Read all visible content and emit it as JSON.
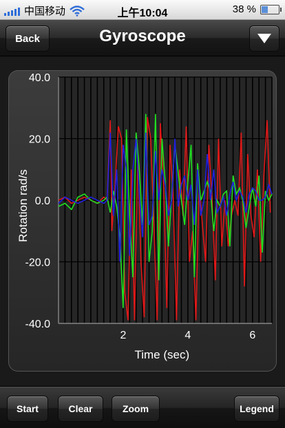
{
  "status_bar": {
    "carrier": "中国移动",
    "time": "上午10:04",
    "battery_text": "38 %",
    "battery_level": 0.38
  },
  "nav": {
    "back_label": "Back",
    "title": "Gyroscope",
    "menu_icon": "triangle-down-icon"
  },
  "toolbar": {
    "start_label": "Start",
    "clear_label": "Clear",
    "zoom_label": "Zoom",
    "legend_label": "Legend"
  },
  "chart_data": {
    "type": "line",
    "xlabel": "Time (sec)",
    "ylabel": "Rotation rad/s",
    "xlim": [
      0,
      6.6
    ],
    "ylim": [
      -40,
      40
    ],
    "xticks": [
      2,
      4,
      6
    ],
    "yticks": [
      -40,
      -20,
      0,
      20,
      40
    ],
    "yticklabels": [
      "-40.0",
      "-20.0",
      "0.0",
      "20.0",
      "40.0"
    ],
    "xticklabels": [
      "2",
      "4",
      "6"
    ],
    "grid": true,
    "series": [
      {
        "color": "#e01818",
        "x": [
          0,
          0.2,
          0.4,
          0.6,
          0.8,
          1.0,
          1.2,
          1.4,
          1.5,
          1.6,
          1.65,
          1.75,
          1.85,
          1.95,
          2.05,
          2.15,
          2.25,
          2.35,
          2.45,
          2.55,
          2.65,
          2.75,
          2.85,
          2.95,
          3.05,
          3.15,
          3.25,
          3.35,
          3.45,
          3.55,
          3.65,
          3.75,
          3.85,
          3.95,
          4.05,
          4.15,
          4.25,
          4.35,
          4.45,
          4.55,
          4.65,
          4.75,
          4.85,
          4.95,
          5.05,
          5.15,
          5.25,
          5.35,
          5.45,
          5.55,
          5.65,
          5.75,
          5.85,
          5.95,
          6.05,
          6.15,
          6.25,
          6.35,
          6.45,
          6.55
        ],
        "values": [
          0,
          1,
          -1,
          0,
          1,
          0,
          -1,
          1,
          0,
          26,
          -10,
          5,
          24,
          20,
          -30,
          -39,
          10,
          -39,
          15,
          -20,
          -38,
          27,
          20,
          -8,
          -39,
          25,
          5,
          -35,
          18,
          0,
          -39,
          10,
          -5,
          24,
          -20,
          -10,
          -39,
          5,
          -8,
          -20,
          18,
          0,
          -26,
          20,
          -15,
          0,
          -15,
          -5,
          0,
          -5,
          22,
          -28,
          15,
          -5,
          -12,
          10,
          -20,
          8,
          26,
          -4
        ]
      },
      {
        "color": "#20e020",
        "x": [
          0,
          0.2,
          0.4,
          0.6,
          0.8,
          1.0,
          1.2,
          1.4,
          1.5,
          1.6,
          1.7,
          1.8,
          1.9,
          2.0,
          2.1,
          2.2,
          2.3,
          2.4,
          2.5,
          2.6,
          2.7,
          2.8,
          2.9,
          3.0,
          3.1,
          3.2,
          3.3,
          3.4,
          3.5,
          3.6,
          3.7,
          3.8,
          3.9,
          4.0,
          4.1,
          4.2,
          4.3,
          4.4,
          4.5,
          4.6,
          4.7,
          4.8,
          4.9,
          5.0,
          5.1,
          5.2,
          5.3,
          5.4,
          5.5,
          5.6,
          5.7,
          5.8,
          5.9,
          6.0,
          6.1,
          6.2,
          6.3,
          6.4,
          6.5,
          6.6
        ],
        "values": [
          -2,
          -1,
          -3,
          1,
          2,
          0,
          -1,
          0,
          1,
          -4,
          3,
          -2,
          -12,
          -35,
          23,
          -5,
          -25,
          22,
          10,
          -8,
          28,
          -20,
          -10,
          28,
          -26,
          20,
          6,
          -15,
          2,
          18,
          9,
          0,
          -8,
          6,
          18,
          -25,
          12,
          0,
          3,
          6,
          3,
          -10,
          0,
          -2,
          2,
          3,
          -15,
          8,
          2,
          4,
          0,
          -9,
          -2,
          4,
          -2,
          8,
          -17,
          3,
          0,
          2
        ]
      },
      {
        "color": "#2020e0",
        "x": [
          0,
          0.2,
          0.4,
          0.6,
          0.8,
          1.0,
          1.2,
          1.4,
          1.5,
          1.6,
          1.7,
          1.8,
          1.9,
          2.0,
          2.1,
          2.2,
          2.3,
          2.4,
          2.5,
          2.6,
          2.7,
          2.8,
          2.9,
          3.0,
          3.1,
          3.2,
          3.3,
          3.4,
          3.5,
          3.6,
          3.7,
          3.8,
          3.9,
          4.0,
          4.1,
          4.2,
          4.3,
          4.4,
          4.5,
          4.6,
          4.7,
          4.8,
          4.9,
          5.0,
          5.1,
          5.2,
          5.3,
          5.4,
          5.5,
          5.6,
          5.7,
          5.8,
          5.9,
          6.0,
          6.1,
          6.2,
          6.3,
          6.4,
          6.5,
          6.6
        ],
        "values": [
          -1,
          1,
          0,
          -1,
          0,
          1,
          0,
          -1,
          0,
          22,
          -5,
          10,
          -20,
          18,
          10,
          -18,
          10,
          20,
          2,
          -12,
          22,
          -8,
          -5,
          16,
          0,
          10,
          5,
          -5,
          0,
          20,
          -2,
          5,
          8,
          0,
          5,
          -8,
          10,
          -5,
          0,
          15,
          0,
          10,
          -4,
          -2,
          1,
          -5,
          2,
          6,
          0,
          3,
          1,
          -4,
          2,
          4,
          3,
          0,
          0,
          1,
          5,
          2
        ]
      }
    ]
  }
}
